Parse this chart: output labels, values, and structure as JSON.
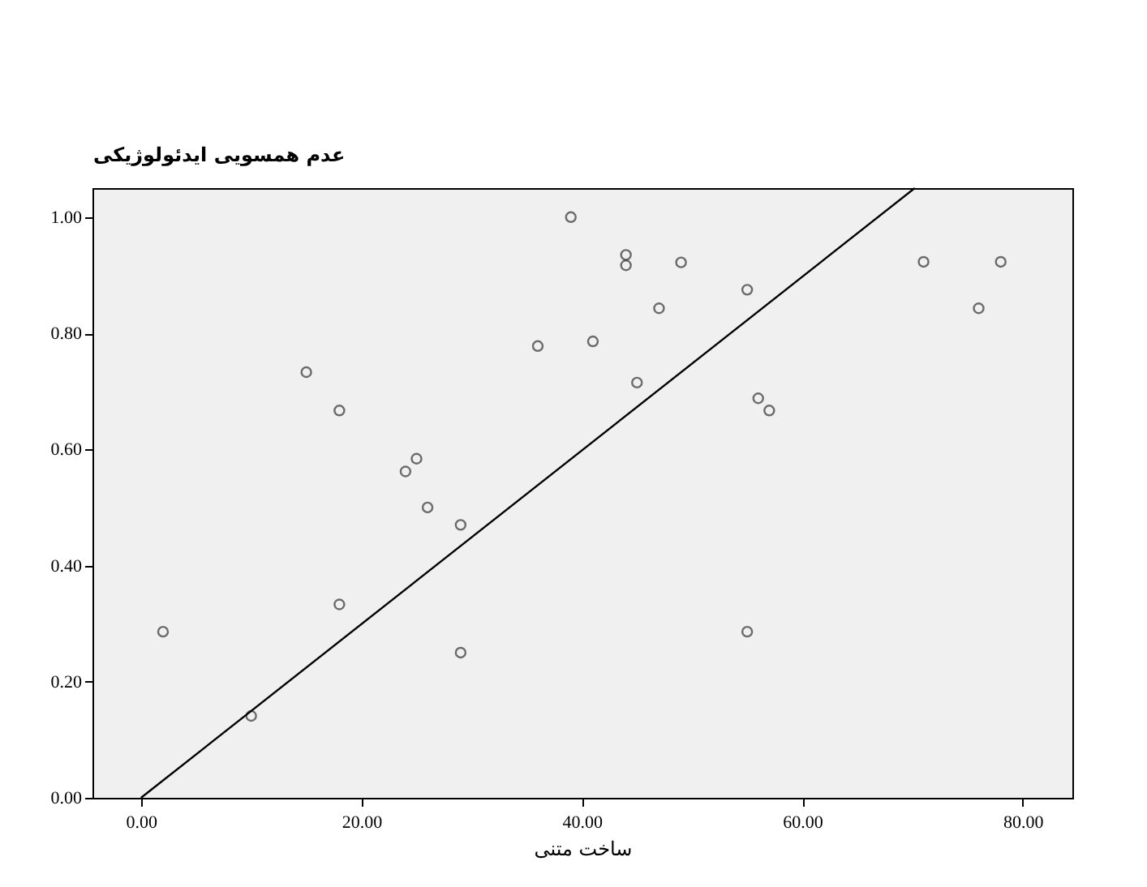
{
  "chart_data": {
    "type": "scatter",
    "xlabel": "ساخت متنی",
    "ylabel": "عدم همسویی ایدئولوژیکی",
    "xlim": [
      -4.4,
      84.5
    ],
    "ylim": [
      0,
      1.05
    ],
    "xticks": [
      {
        "value": 0,
        "label": "0.00"
      },
      {
        "value": 20,
        "label": "20.00"
      },
      {
        "value": 40,
        "label": "40.00"
      },
      {
        "value": 60,
        "label": "60.00"
      },
      {
        "value": 80,
        "label": "80.00"
      }
    ],
    "yticks": [
      {
        "value": 0,
        "label": "0.00"
      },
      {
        "value": 0.2,
        "label": "0.20"
      },
      {
        "value": 0.4,
        "label": "0.40"
      },
      {
        "value": 0.6,
        "label": "0.60"
      },
      {
        "value": 0.8,
        "label": "0.80"
      },
      {
        "value": 1,
        "label": "1.00"
      }
    ],
    "grid": false,
    "series": [
      {
        "marker": "circle",
        "color": "#333333",
        "x": [
          2,
          10,
          15,
          18,
          18,
          24,
          25,
          26,
          29,
          29,
          36,
          39,
          41,
          44,
          44,
          45,
          47,
          49,
          55,
          55,
          56,
          57,
          71,
          76,
          78
        ],
        "values": [
          0.286,
          0.141,
          0.733,
          0.667,
          0.333,
          0.562,
          0.584,
          0.5,
          0.47,
          0.25,
          0.778,
          1.0,
          0.786,
          0.935,
          0.917,
          0.715,
          0.843,
          0.922,
          0.875,
          0.286,
          0.688,
          0.667,
          0.923,
          0.843,
          0.923
        ]
      },
      {
        "type": "line",
        "color": "#000000",
        "x": [
          0,
          70.2
        ],
        "values": [
          0,
          1.05
        ]
      }
    ]
  }
}
